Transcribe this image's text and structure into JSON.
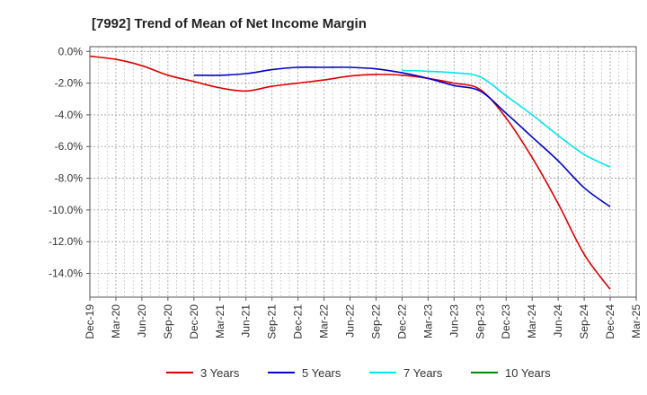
{
  "chart_data": {
    "type": "line",
    "title": "[7992]  Trend of Mean of Net Income Margin",
    "xlabel": "",
    "ylabel": "",
    "x_tick_labels": [
      "Dec-19",
      "Mar-20",
      "Jun-20",
      "Sep-20",
      "Dec-20",
      "Mar-21",
      "Jun-21",
      "Sep-21",
      "Dec-21",
      "Mar-22",
      "Jun-22",
      "Sep-22",
      "Dec-22",
      "Mar-23",
      "Jun-23",
      "Sep-23",
      "Dec-23",
      "Mar-24",
      "Jun-24",
      "Sep-24",
      "Dec-24",
      "Mar-25"
    ],
    "y_tick_labels": [
      "0.0%",
      "-2.0%",
      "-4.0%",
      "-6.0%",
      "-8.0%",
      "-10.0%",
      "-12.0%",
      "-14.0%"
    ],
    "y_ticks": [
      0,
      -2,
      -4,
      -6,
      -8,
      -10,
      -12,
      -14
    ],
    "ylim": [
      -15.5,
      0.3
    ],
    "grid": true,
    "legend_position": "bottom",
    "series": [
      {
        "name": "3 Years",
        "color": "#dd0000",
        "x": [
          "Dec-19",
          "Mar-20",
          "Jun-20",
          "Sep-20",
          "Dec-20",
          "Mar-21",
          "Jun-21",
          "Sep-21",
          "Dec-21",
          "Mar-22",
          "Jun-22",
          "Sep-22",
          "Dec-22",
          "Mar-23",
          "Jun-23",
          "Sep-23",
          "Dec-23",
          "Mar-24",
          "Jun-24",
          "Sep-24",
          "Dec-24"
        ],
        "values": [
          -0.3,
          -0.5,
          -0.9,
          -1.5,
          -1.9,
          -2.3,
          -2.5,
          -2.2,
          -2.0,
          -1.8,
          -1.55,
          -1.45,
          -1.5,
          -1.7,
          -2.0,
          -2.4,
          -4.2,
          -6.7,
          -9.6,
          -12.8,
          -15.0
        ]
      },
      {
        "name": "5 Years",
        "color": "#0000cc",
        "x": [
          "Dec-20",
          "Mar-21",
          "Jun-21",
          "Sep-21",
          "Dec-21",
          "Mar-22",
          "Jun-22",
          "Sep-22",
          "Dec-22",
          "Mar-23",
          "Jun-23",
          "Sep-23",
          "Dec-23",
          "Mar-24",
          "Jun-24",
          "Sep-24",
          "Dec-24"
        ],
        "values": [
          -1.5,
          -1.5,
          -1.4,
          -1.15,
          -1.0,
          -1.0,
          -1.0,
          -1.1,
          -1.35,
          -1.7,
          -2.15,
          -2.5,
          -3.9,
          -5.4,
          -6.9,
          -8.6,
          -9.8
        ]
      },
      {
        "name": "7 Years",
        "color": "#00e5ee",
        "x": [
          "Dec-22",
          "Mar-23",
          "Jun-23",
          "Sep-23",
          "Dec-23",
          "Mar-24",
          "Jun-24",
          "Sep-24",
          "Dec-24"
        ],
        "values": [
          -1.2,
          -1.25,
          -1.35,
          -1.6,
          -2.8,
          -4.0,
          -5.3,
          -6.5,
          -7.3
        ]
      },
      {
        "name": "10 Years",
        "color": "#008800",
        "x": [],
        "values": []
      }
    ]
  }
}
